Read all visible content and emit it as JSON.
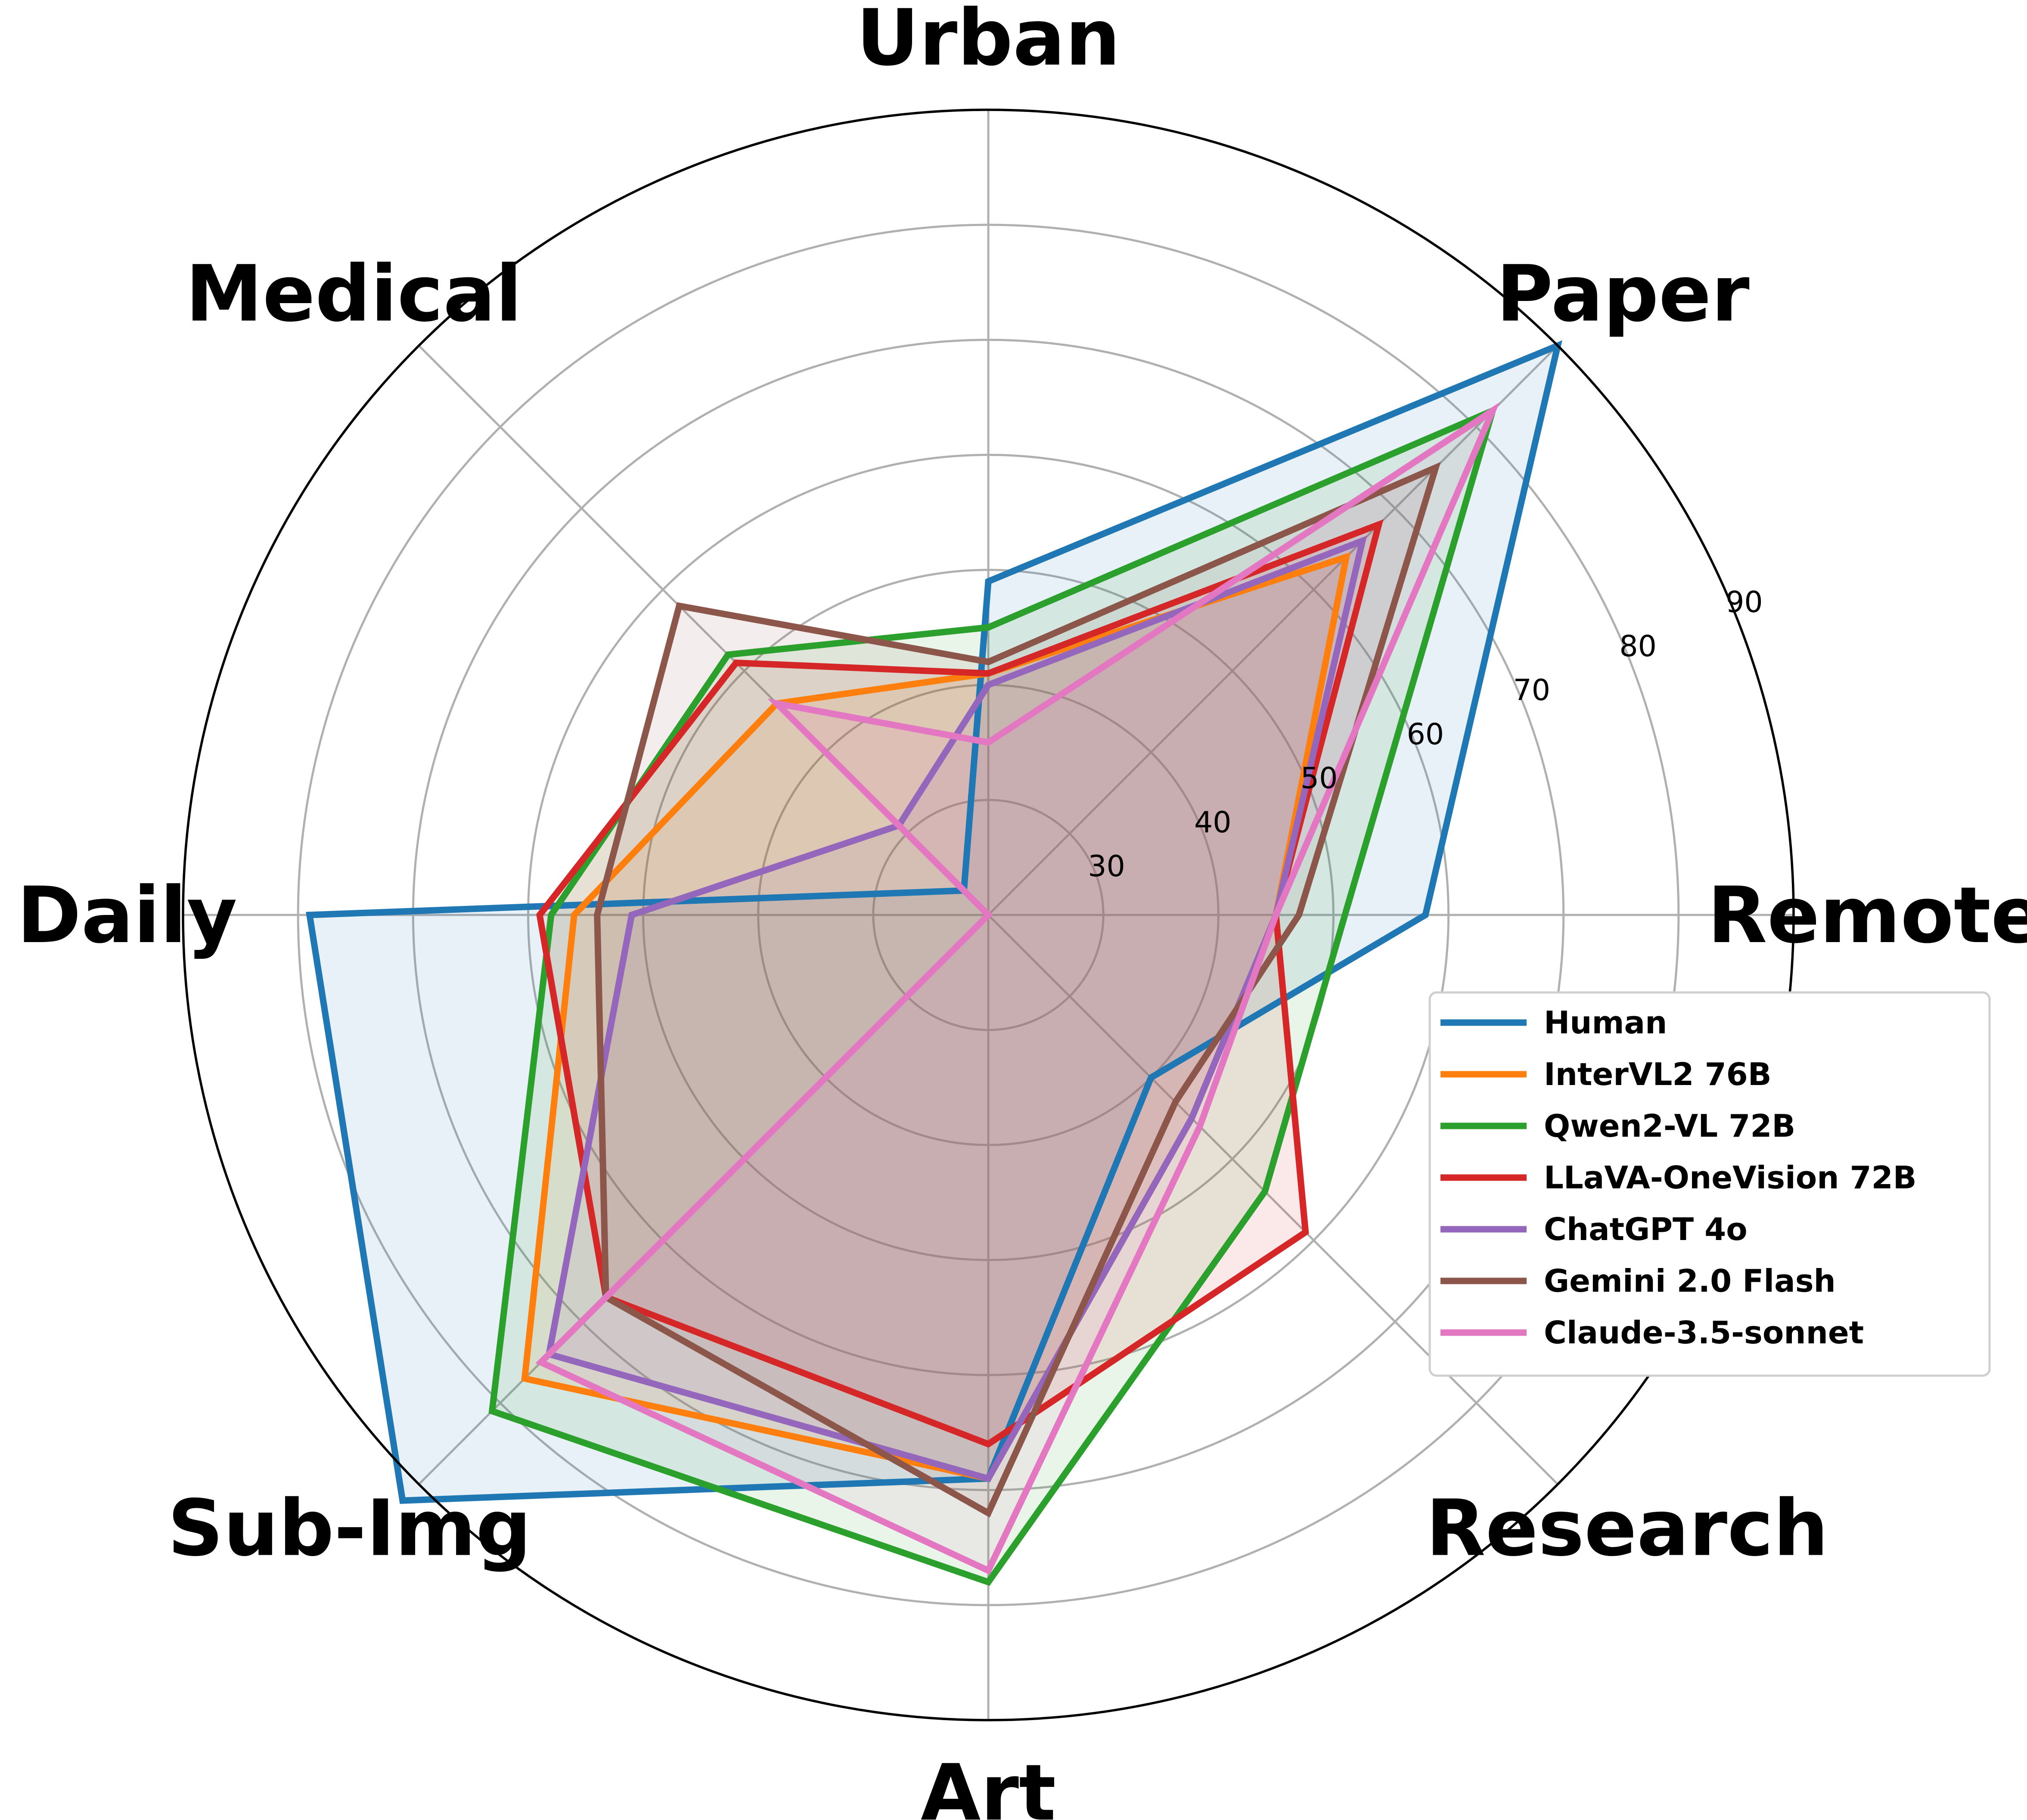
{
  "chart_data": {
    "type": "radar",
    "categories": [
      "Remote",
      "Paper",
      "Urban",
      "Medical",
      "Daily",
      "Sub-Img",
      "Art",
      "Research"
    ],
    "r_ticks": [
      30,
      40,
      50,
      60,
      70,
      80,
      90
    ],
    "rlim": [
      20,
      90
    ],
    "grid": true,
    "legend_position": "lower-right",
    "series": [
      {
        "name": "Human",
        "color": "#1f77b4",
        "values": [
          58,
          90,
          49,
          23,
          79,
          92,
          69,
          40
        ]
      },
      {
        "name": "InterVL2 76B",
        "color": "#ff7f0e",
        "values": [
          45,
          64,
          41,
          46,
          56,
          77,
          69,
          45
        ]
      },
      {
        "name": "Qwen2-VL 72B",
        "color": "#2ca02c",
        "values": [
          51,
          82,
          45,
          52,
          58,
          81,
          78,
          54
        ]
      },
      {
        "name": "LLaVA-OneVision 72B",
        "color": "#d62728",
        "values": [
          45,
          68,
          41,
          51,
          59,
          67,
          66,
          59
        ]
      },
      {
        "name": "ChatGPT 4o",
        "color": "#9467bd",
        "values": [
          45,
          66,
          40,
          31,
          51,
          74,
          69,
          45
        ]
      },
      {
        "name": "Gemini 2.0 Flash",
        "color": "#8c564b",
        "values": [
          47,
          75,
          42,
          58,
          54,
          67,
          72,
          43
        ]
      },
      {
        "name": "Claude-3.5-sonnet",
        "color": "#e377c2",
        "values": [
          45,
          82,
          35,
          46,
          20,
          75,
          77,
          46
        ]
      }
    ]
  }
}
